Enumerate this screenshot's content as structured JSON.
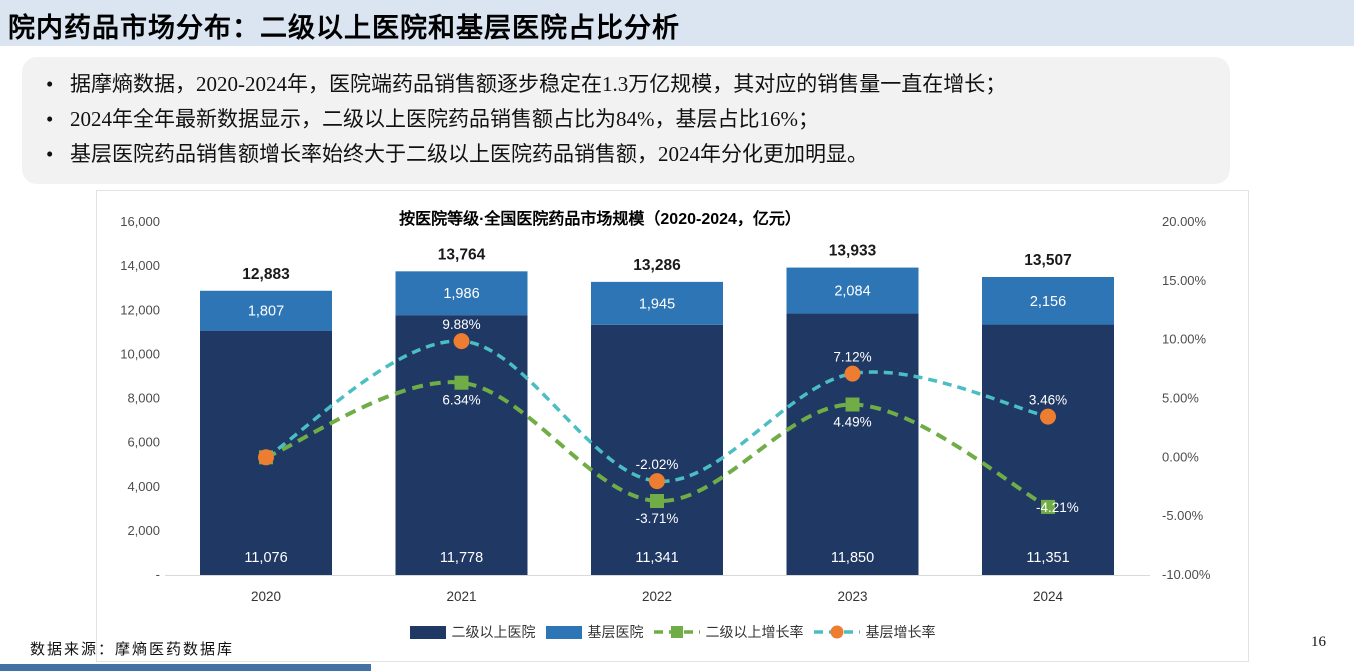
{
  "slide": {
    "title": "院内药品市场分布：二级以上医院和基层医院占比分析",
    "bullets": [
      "据摩熵数据，2020-2024年，医院端药品销售额逐步稳定在1.3万亿规模，其对应的销售量一直在增长；",
      "2024年全年最新数据显示，二级以上医院药品销售额占比为84%，基层占比16%；",
      "基层医院药品销售额增长率始终大于二级以上医院药品销售额，2024年分化更加明显。"
    ],
    "source": "数据来源：摩熵医药数据库",
    "page_number": "16"
  },
  "chart_data": {
    "type": "bar",
    "subtype": "stacked-bar-with-lines",
    "title": "按医院等级·全国医院药品市场规模（2020-2024，亿元）",
    "categories": [
      "2020",
      "2021",
      "2022",
      "2023",
      "2024"
    ],
    "bar_series": [
      {
        "name": "二级以上医院",
        "color": "#1f3864",
        "values": [
          11076,
          11778,
          11341,
          11850,
          11351
        ],
        "labels": [
          "11,076",
          "11,778",
          "11,341",
          "11,850",
          "11,351"
        ]
      },
      {
        "name": "基层医院",
        "color": "#2e75b6",
        "values": [
          1807,
          1986,
          1945,
          2084,
          2156
        ],
        "labels": [
          "1,807",
          "1,986",
          "1,945",
          "2,084",
          "2,156"
        ]
      }
    ],
    "totals": [
      12883,
      13764,
      13286,
      13933,
      13507
    ],
    "total_labels": [
      "12,883",
      "13,764",
      "13,286",
      "13,933",
      "13,507"
    ],
    "line_series": [
      {
        "name": "二级以上增长率",
        "line_color": "#70ad47",
        "marker": "square",
        "marker_color": "#70ad47",
        "values_pct": [
          0,
          6.34,
          -3.71,
          4.49,
          -4.21
        ],
        "labels": [
          "",
          "6.34%",
          "-3.71%",
          "4.49%",
          "-4.21%"
        ],
        "label_placement": [
          "none",
          "below",
          "below",
          "below",
          "right"
        ]
      },
      {
        "name": "基层增长率",
        "line_color": "#4bbec3",
        "marker": "circle",
        "marker_color": "#ed7d31",
        "values_pct": [
          0,
          9.88,
          -2.02,
          7.12,
          3.46
        ],
        "labels": [
          "",
          "9.88%",
          "-2.02%",
          "7.12%",
          "3.46%"
        ],
        "label_placement": [
          "none",
          "above",
          "above",
          "above",
          "above"
        ]
      }
    ],
    "left_axis_ticks": [
      "16,000",
      "14,000",
      "12,000",
      "10,000",
      "8,000",
      "6,000",
      "4,000",
      "2,000",
      "-"
    ],
    "right_axis_ticks": [
      "20.00%",
      "15.00%",
      "10.00%",
      "5.00%",
      "0.00%",
      "-5.00%",
      "-10.00%"
    ],
    "left_axis_range": [
      0,
      16000
    ],
    "right_axis_range": [
      -10,
      20
    ],
    "grid": "off",
    "legend_position": "bottom",
    "legend": [
      {
        "type": "rect",
        "color": "#1f3864",
        "label": "二级以上医院"
      },
      {
        "type": "rect",
        "color": "#2e75b6",
        "label": "基层医院"
      },
      {
        "type": "line",
        "line_color": "#70ad47",
        "marker": "square",
        "marker_color": "#70ad47",
        "label": "二级以上增长率"
      },
      {
        "type": "line",
        "line_color": "#4bbec3",
        "marker": "circle",
        "marker_color": "#ed7d31",
        "label": "基层增长率"
      }
    ]
  }
}
